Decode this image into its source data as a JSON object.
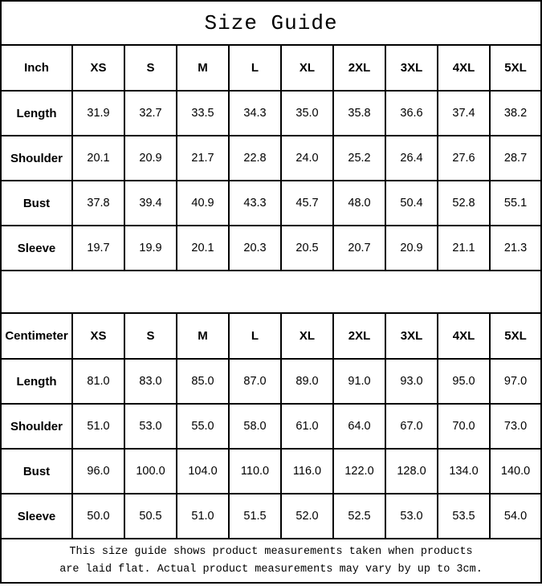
{
  "title": "Size Guide",
  "colors": {
    "background": "#ffffff",
    "border": "#000000",
    "text": "#000000"
  },
  "tables": [
    {
      "unit": "Inch",
      "sizes": [
        "XS",
        "S",
        "M",
        "L",
        "XL",
        "2XL",
        "3XL",
        "4XL",
        "5XL"
      ],
      "rows": [
        {
          "label": "Length",
          "values": [
            "31.9",
            "32.7",
            "33.5",
            "34.3",
            "35.0",
            "35.8",
            "36.6",
            "37.4",
            "38.2"
          ]
        },
        {
          "label": "Shoulder",
          "values": [
            "20.1",
            "20.9",
            "21.7",
            "22.8",
            "24.0",
            "25.2",
            "26.4",
            "27.6",
            "28.7"
          ]
        },
        {
          "label": "Bust",
          "values": [
            "37.8",
            "39.4",
            "40.9",
            "43.3",
            "45.7",
            "48.0",
            "50.4",
            "52.8",
            "55.1"
          ]
        },
        {
          "label": "Sleeve",
          "values": [
            "19.7",
            "19.9",
            "20.1",
            "20.3",
            "20.5",
            "20.7",
            "20.9",
            "21.1",
            "21.3"
          ]
        }
      ]
    },
    {
      "unit": "Centimeter",
      "sizes": [
        "XS",
        "S",
        "M",
        "L",
        "XL",
        "2XL",
        "3XL",
        "4XL",
        "5XL"
      ],
      "rows": [
        {
          "label": "Length",
          "values": [
            "81.0",
            "83.0",
            "85.0",
            "87.0",
            "89.0",
            "91.0",
            "93.0",
            "95.0",
            "97.0"
          ]
        },
        {
          "label": "Shoulder",
          "values": [
            "51.0",
            "53.0",
            "55.0",
            "58.0",
            "61.0",
            "64.0",
            "67.0",
            "70.0",
            "73.0"
          ]
        },
        {
          "label": "Bust",
          "values": [
            "96.0",
            "100.0",
            "104.0",
            "110.0",
            "116.0",
            "122.0",
            "128.0",
            "134.0",
            "140.0"
          ]
        },
        {
          "label": "Sleeve",
          "values": [
            "50.0",
            "50.5",
            "51.0",
            "51.5",
            "52.0",
            "52.5",
            "53.0",
            "53.5",
            "54.0"
          ]
        }
      ]
    }
  ],
  "note": {
    "line1": "This size guide shows product measurements taken when products",
    "line2": "are laid flat. Actual product measurements may vary by up to 3cm."
  }
}
